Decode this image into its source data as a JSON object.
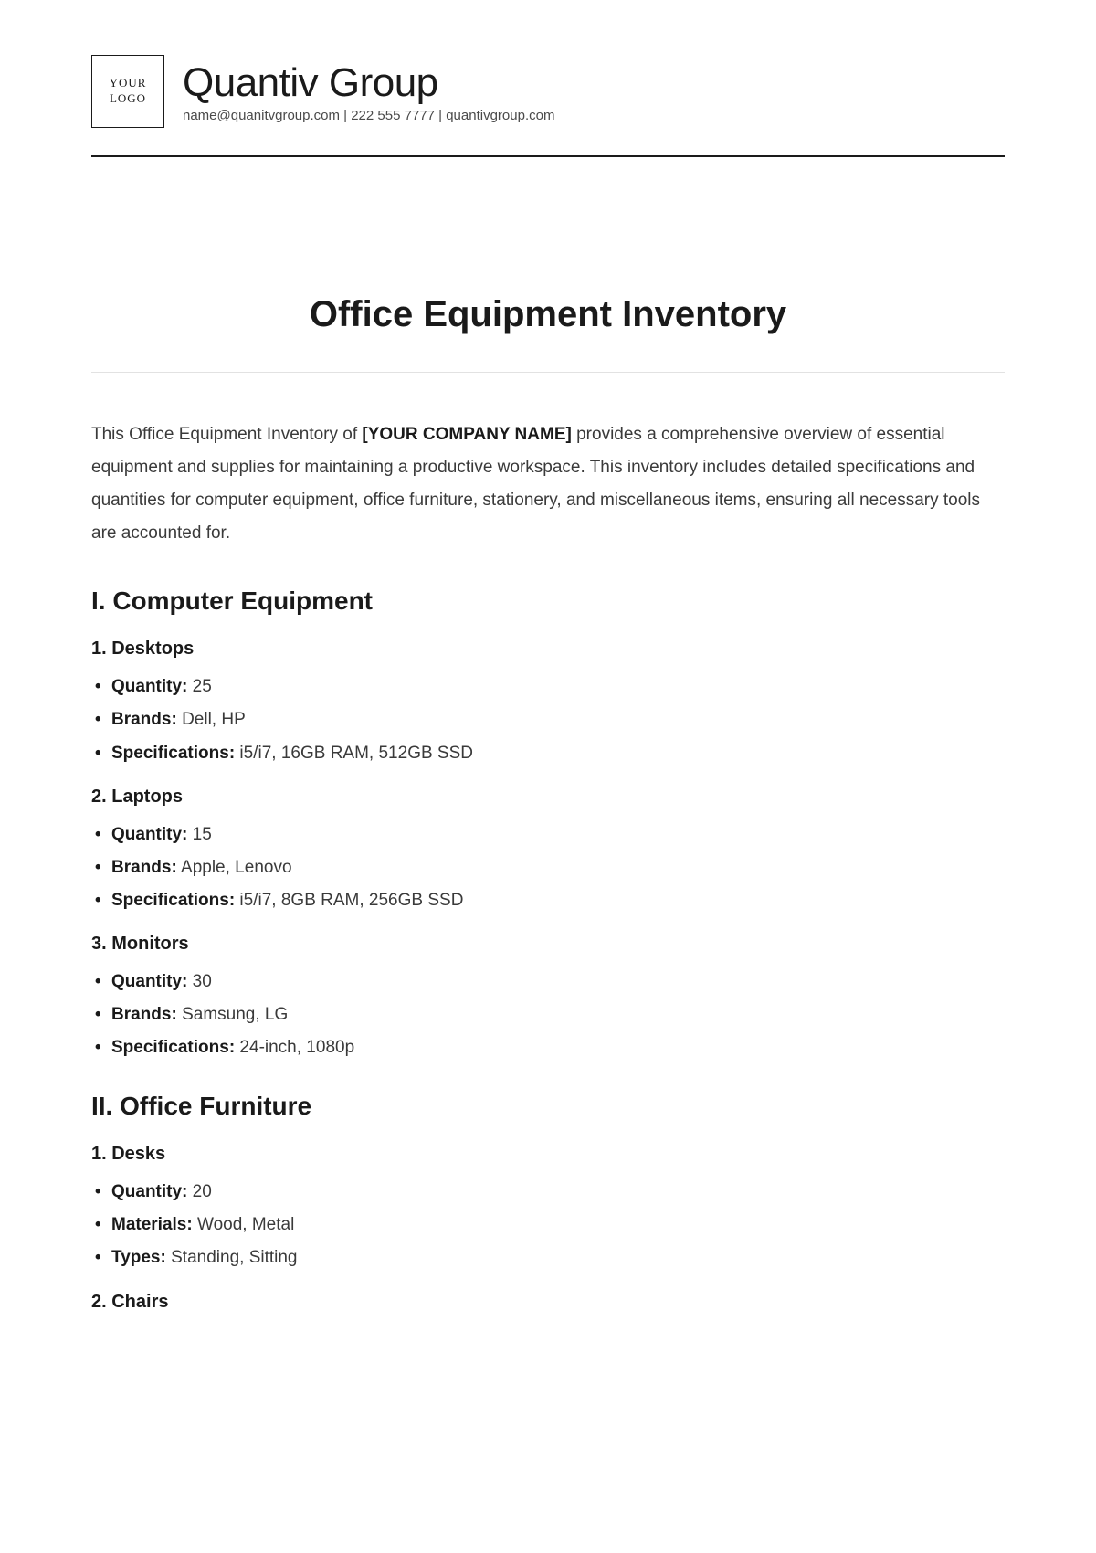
{
  "header": {
    "logo_line1": "YOUR",
    "logo_line2": "LOGO",
    "company_name": "Quantiv Group",
    "contact_line": "name@quanitvgroup.com | 222 555 7777 | quantivgroup.com"
  },
  "title": "Office Equipment Inventory",
  "intro": {
    "prefix": "This Office Equipment Inventory of ",
    "placeholder": "[YOUR COMPANY NAME]",
    "suffix": " provides a comprehensive overview of essential equipment and supplies for maintaining a productive workspace. This inventory includes detailed specifications and quantities for computer equipment, office furniture, stationery, and miscellaneous items, ensuring all necessary tools are accounted for."
  },
  "sections": {
    "s1": {
      "heading": "I. Computer Equipment",
      "items": {
        "i1": {
          "title": "1. Desktops",
          "specs": {
            "a": {
              "label": "Quantity:",
              "value": " 25"
            },
            "b": {
              "label": "Brands:",
              "value": " Dell, HP"
            },
            "c": {
              "label": "Specifications:",
              "value": " i5/i7, 16GB RAM, 512GB SSD"
            }
          }
        },
        "i2": {
          "title": "2. Laptops",
          "specs": {
            "a": {
              "label": "Quantity:",
              "value": " 15"
            },
            "b": {
              "label": "Brands:",
              "value": " Apple, Lenovo"
            },
            "c": {
              "label": "Specifications:",
              "value": " i5/i7, 8GB RAM, 256GB SSD"
            }
          }
        },
        "i3": {
          "title": "3. Monitors",
          "specs": {
            "a": {
              "label": "Quantity:",
              "value": " 30"
            },
            "b": {
              "label": "Brands:",
              "value": " Samsung, LG"
            },
            "c": {
              "label": "Specifications:",
              "value": " 24-inch, 1080p"
            }
          }
        }
      }
    },
    "s2": {
      "heading": "II. Office Furniture",
      "items": {
        "i1": {
          "title": "1. Desks",
          "specs": {
            "a": {
              "label": "Quantity:",
              "value": " 20"
            },
            "b": {
              "label": "Materials:",
              "value": " Wood, Metal"
            },
            "c": {
              "label": "Types:",
              "value": " Standing, Sitting"
            }
          }
        },
        "i2": {
          "title": "2. Chairs"
        }
      }
    }
  },
  "colors": {
    "text": "#1a1a1a",
    "body": "#3a3a3a",
    "rule_thin": "#e2e2e2",
    "background": "#ffffff"
  },
  "typography": {
    "title_fontsize": 40,
    "section_fontsize": 28,
    "item_fontsize": 20,
    "body_fontsize": 19,
    "company_fontsize": 44
  }
}
